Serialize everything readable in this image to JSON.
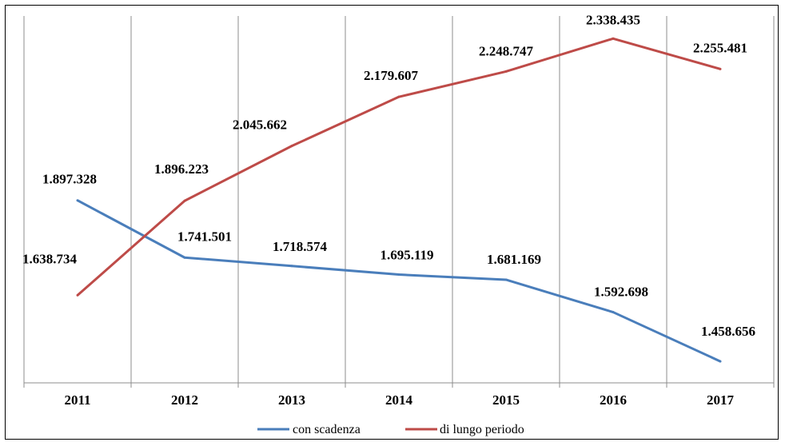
{
  "chart_data": {
    "type": "line",
    "categories": [
      "2011",
      "2012",
      "2013",
      "2014",
      "2015",
      "2016",
      "2017"
    ],
    "series": [
      {
        "name": "con scadenza",
        "color": "#4a7ebb",
        "values": [
          1897328,
          1741501,
          1718574,
          1695119,
          1681169,
          1592698,
          1458656
        ],
        "labels": [
          "1.897.328",
          "1.741.501",
          "1.718.574",
          "1.695.119",
          "1.681.169",
          "1.592.698",
          "1.458.656"
        ]
      },
      {
        "name": "di lungo periodo",
        "color": "#be4b48",
        "values": [
          1638734,
          1896223,
          2045662,
          2179607,
          2248747,
          2338435,
          2255481
        ],
        "labels": [
          "1.638.734",
          "1.896.223",
          "2.045.662",
          "2.179.607",
          "2.248.747",
          "2.338.435",
          "2.255.481"
        ]
      }
    ],
    "title": "",
    "xlabel": "",
    "ylabel": "",
    "ylim": [
      1400000,
      2400000
    ],
    "grid": "vertical",
    "legend_position": "bottom"
  }
}
